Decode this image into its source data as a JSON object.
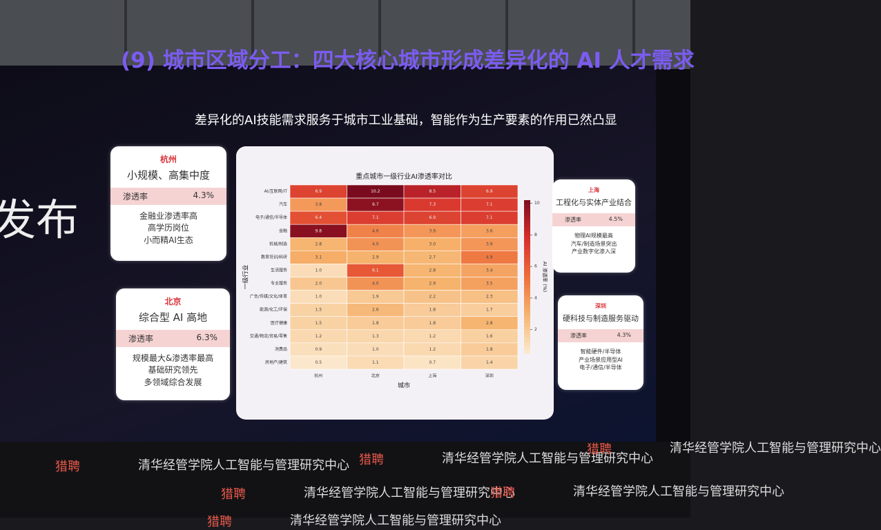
{
  "slide": {
    "title": "(9) 城市区域分工：四大核心城市形成差异化的 AI 人才需求",
    "subtitle": "差异化的AI技能需求服务于城市工业基础，智能作为生产要素的作用已然凸显",
    "side_text": "发布",
    "cards": [
      {
        "city": "杭州",
        "headline": "小规模、高集中度",
        "rate_label": "渗透率",
        "rate": "4.3%",
        "points": [
          "金融业渗透率高",
          "高学历岗位",
          "小而精AI生态"
        ]
      },
      {
        "city": "北京",
        "headline": "综合型 AI 高地",
        "rate_label": "渗透率",
        "rate": "6.3%",
        "points": [
          "规模最大&渗透率最高",
          "基础研究领先",
          "多领域综合发展"
        ]
      },
      {
        "city": "上海",
        "headline": "工程化与实体产业结合",
        "rate_label": "渗透率",
        "rate": "4.5%",
        "points": [
          "物理AI规模最高",
          "汽车/制造场景突出",
          "产业数字化渗入深"
        ]
      },
      {
        "city": "深圳",
        "headline": "硬科技与制造服务驱动",
        "rate_label": "渗透率",
        "rate": "4.3%",
        "points": [
          "智能硬件/半导体",
          "产业场景应用型AI",
          "电子/通信/半导体"
        ]
      }
    ]
  },
  "footer": {
    "logo": "猎聘",
    "org": "清华经管学院人工智能与管理研究中心"
  },
  "chart_data": {
    "type": "heatmap",
    "title": "重点城市一级行业AI渗透率对比",
    "x_label": "城市",
    "y_label": "一级行业",
    "categories": [
      "杭州",
      "北京",
      "上海",
      "深圳"
    ],
    "rows": [
      "AI/互联网/IT",
      "汽车",
      "电子/通信/半导体",
      "金融",
      "机械/制造",
      "教育培训/科研",
      "生活服务",
      "专业服务",
      "广告/传媒/文化/体育",
      "能源/化工/环保",
      "医疗健康",
      "交通/物流/贸易/零售",
      "消费品",
      "房地产/建筑"
    ],
    "values": [
      [
        6.9,
        10.2,
        8.5,
        6.9
      ],
      [
        3.8,
        9.7,
        7.3,
        7.1
      ],
      [
        6.4,
        7.1,
        6.9,
        7.1
      ],
      [
        9.8,
        4.6,
        3.9,
        3.6
      ],
      [
        2.8,
        4.0,
        3.0,
        3.9
      ],
      [
        3.1,
        2.9,
        2.7,
        4.9
      ],
      [
        1.0,
        6.1,
        2.8,
        3.4
      ],
      [
        2.0,
        4.0,
        2.9,
        3.5
      ],
      [
        1.0,
        1.9,
        2.2,
        2.3
      ],
      [
        1.5,
        2.6,
        1.8,
        1.7
      ],
      [
        1.5,
        1.8,
        1.8,
        2.8
      ],
      [
        1.2,
        1.3,
        1.2,
        1.6
      ],
      [
        0.9,
        1.0,
        1.2,
        1.8
      ],
      [
        0.5,
        1.1,
        0.7,
        1.4
      ]
    ],
    "value_labels": [
      [
        "6.9",
        "10.2",
        "8.5",
        "6.9"
      ],
      [
        "3.8",
        "9.7",
        "7.3",
        "7.1"
      ],
      [
        "6.4",
        "7.1",
        "6.9",
        "7.1"
      ],
      [
        "9.8",
        "4.6",
        "3.9",
        "3.6"
      ],
      [
        "2.8",
        "4.0",
        "3.0",
        "3.9"
      ],
      [
        "3.1",
        "2.9",
        "2.7",
        "4.9"
      ],
      [
        "1.0",
        "6.1",
        "2.8",
        "3.4"
      ],
      [
        "2.0",
        "4.0",
        "2.9",
        "3.5"
      ],
      [
        "1.0",
        "1.9",
        "2.2",
        "2.3"
      ],
      [
        "1.5",
        "2.6",
        "1.8",
        "1.7"
      ],
      [
        "1.5",
        "1.8",
        "1.8",
        "2.8"
      ],
      [
        "1.2",
        "1.3",
        "1.2",
        "1.6"
      ],
      [
        "0.9",
        "1.0",
        "1.2",
        "1.8"
      ],
      [
        "0.5",
        "1.1",
        "0.7",
        "1.4"
      ]
    ],
    "colorbar_label": "AI 渗透率 (%)",
    "zlim": [
      0.5,
      10.2
    ],
    "zticks": [
      2,
      4,
      6,
      8,
      10
    ],
    "colormap": [
      "#fbe8cc",
      "#f6b26c",
      "#ee6c3a",
      "#d42c2c",
      "#7a0b1e"
    ]
  }
}
